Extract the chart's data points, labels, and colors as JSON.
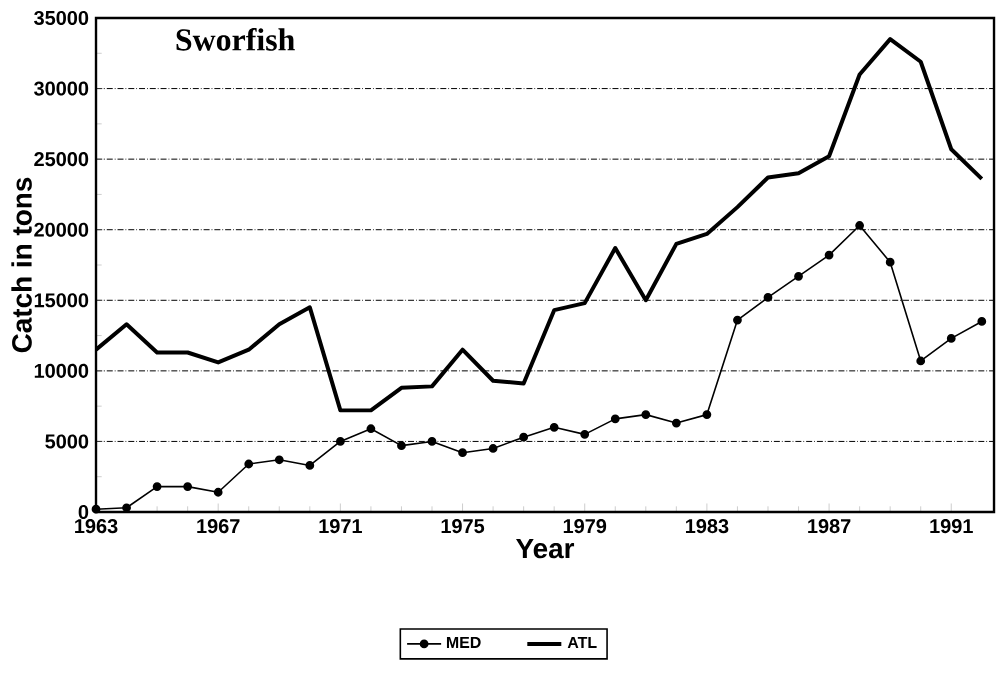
{
  "chart_data": {
    "type": "line",
    "title": "Sworfish",
    "xlabel": "Year",
    "ylabel": "Catch in tons",
    "x": [
      1963,
      1964,
      1965,
      1966,
      1967,
      1968,
      1969,
      1970,
      1971,
      1972,
      1973,
      1974,
      1975,
      1976,
      1977,
      1978,
      1979,
      1980,
      1981,
      1982,
      1983,
      1984,
      1985,
      1986,
      1987,
      1988,
      1989,
      1990,
      1991,
      1992
    ],
    "series": [
      {
        "name": "MED",
        "color": "#000000",
        "marker": "circle",
        "values": [
          200,
          300,
          1800,
          1800,
          1400,
          3400,
          3700,
          3300,
          5000,
          5900,
          4700,
          5000,
          4200,
          4500,
          5300,
          6000,
          5500,
          6600,
          6900,
          6300,
          6900,
          13600,
          15200,
          16700,
          18200,
          20300,
          17700,
          10700,
          12300,
          13500
        ]
      },
      {
        "name": "ATL",
        "color": "#000000",
        "marker": "none",
        "values": [
          11500,
          13300,
          11300,
          11300,
          10600,
          11500,
          13300,
          14500,
          7200,
          7200,
          8800,
          8900,
          11500,
          9300,
          9100,
          14300,
          14800,
          18700,
          15000,
          19000,
          19700,
          21600,
          23700,
          24000,
          25200,
          31000,
          33500,
          31900,
          25700,
          23600
        ]
      }
    ],
    "xlim": [
      1963,
      1992.4
    ],
    "xticks": [
      1963,
      1967,
      1971,
      1975,
      1979,
      1983,
      1987,
      1991
    ],
    "ylim": [
      0,
      35000
    ],
    "yticks": [
      0,
      5000,
      10000,
      15000,
      20000,
      25000,
      30000,
      35000
    ],
    "grid": "y",
    "legend": "bottom"
  }
}
